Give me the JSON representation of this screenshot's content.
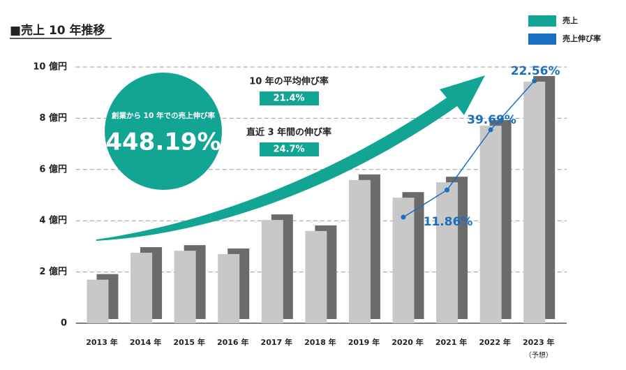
{
  "chart_data": {
    "type": "bar",
    "title": "■売上 10 年推移",
    "categories": [
      "2013 年",
      "2014 年",
      "2015 年",
      "2016 年",
      "2017 年",
      "2018 年",
      "2019 年",
      "2020 年",
      "2021 年",
      "2022 年",
      "2023 年"
    ],
    "category_note": "（予想）",
    "values": [
      1.7,
      2.75,
      2.83,
      2.7,
      4.03,
      3.6,
      5.59,
      4.9,
      5.5,
      7.71,
      9.43
    ],
    "color": "#c8c8c8",
    "shadow_color": "#6b6b6b",
    "line_series": {
      "name": "売上伸び率",
      "color": "#1b6fbf",
      "values": [
        null,
        null,
        null,
        null,
        null,
        null,
        null,
        4.14,
        5.2,
        7.55,
        9.46
      ]
    },
    "annotations": [
      {
        "text": "11.86%",
        "category": 8
      },
      {
        "text": "39.69%",
        "category": 9
      },
      {
        "text": "22.56%",
        "category": 10
      }
    ],
    "legend": [
      {
        "name": "売上",
        "color": "#13a594"
      },
      {
        "name": "売上伸び率",
        "color": "#1b6fbf"
      }
    ],
    "ylim": [
      0,
      10
    ],
    "yticks": [
      0,
      {
        "value": 2,
        "label": "2 億円"
      },
      {
        "value": 4,
        "label": "4 億円"
      },
      {
        "value": 6,
        "label": "6 億円"
      },
      {
        "value": 8,
        "label": "8 億円"
      },
      {
        "value": 10,
        "label": "10 億円"
      }
    ],
    "grid": true,
    "circle": {
      "caption": "創業から 10 年での売上伸び率",
      "value": "448.19%"
    },
    "stats": [
      {
        "label": "10 年の平均伸び率",
        "value": "21.4%"
      },
      {
        "label": "直近 3 年間の伸び率",
        "value": "24.7%"
      }
    ]
  }
}
